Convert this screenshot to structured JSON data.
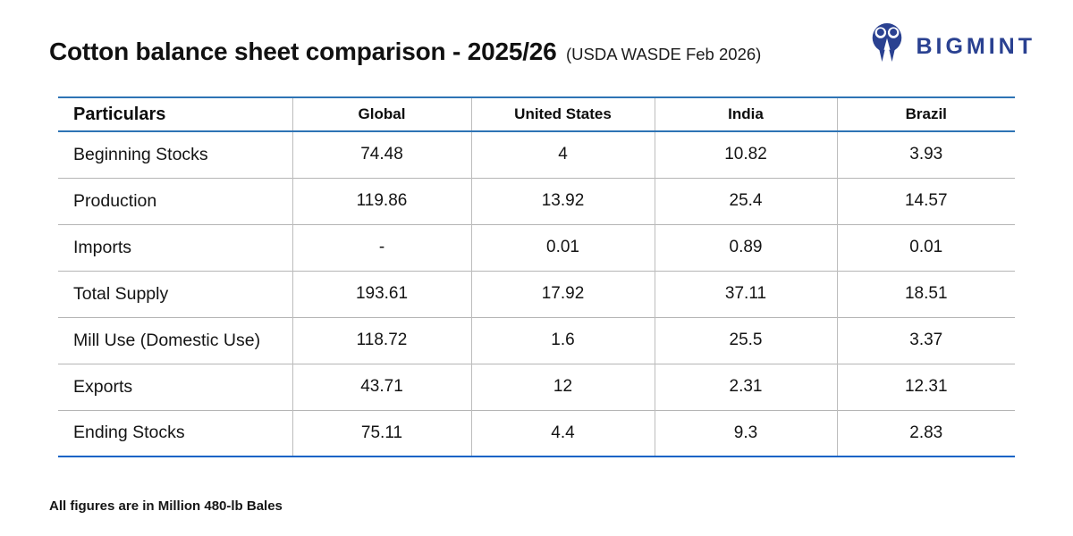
{
  "header": {
    "title": "Cotton balance sheet comparison - 2025/26",
    "subtitle": "(USDA WASDE Feb 2026)",
    "brand_name": "BIGMINT"
  },
  "table": {
    "columns": [
      "Particulars",
      "Global",
      "United States",
      "India",
      "Brazil"
    ],
    "rows": [
      {
        "label": "Beginning Stocks",
        "values": [
          "74.48",
          "4",
          "10.82",
          "3.93"
        ]
      },
      {
        "label": "Production",
        "values": [
          "119.86",
          "13.92",
          "25.4",
          "14.57"
        ]
      },
      {
        "label": "Imports",
        "values": [
          "-",
          "0.01",
          "0.89",
          "0.01"
        ]
      },
      {
        "label": "Total Supply",
        "values": [
          "193.61",
          "17.92",
          "37.11",
          "18.51"
        ]
      },
      {
        "label": "Mill Use (Domestic Use)",
        "values": [
          "118.72",
          "1.6",
          "25.5",
          "3.37"
        ]
      },
      {
        "label": "Exports",
        "values": [
          "43.71",
          "12",
          "2.31",
          "12.31"
        ]
      },
      {
        "label": "Ending Stocks",
        "values": [
          "75.11",
          "4.4",
          "9.3",
          "2.83"
        ]
      }
    ]
  },
  "footer": {
    "note": "All figures are in Million 480-lb Bales"
  },
  "colors": {
    "brand_blue": "#2a4191",
    "header_rule_blue": "#2e74b5",
    "bottom_rule_blue": "#1163c6",
    "grid_gray": "#bdbdbd"
  },
  "chart_data": {
    "type": "table",
    "title": "Cotton balance sheet comparison - 2025/26 (USDA WASDE Feb 2026)",
    "unit_note": "All figures are in Million 480-lb Bales",
    "columns": [
      "Particulars",
      "Global",
      "United States",
      "India",
      "Brazil"
    ],
    "rows": [
      [
        "Beginning Stocks",
        74.48,
        4,
        10.82,
        3.93
      ],
      [
        "Production",
        119.86,
        13.92,
        25.4,
        14.57
      ],
      [
        "Imports",
        null,
        0.01,
        0.89,
        0.01
      ],
      [
        "Total Supply",
        193.61,
        17.92,
        37.11,
        18.51
      ],
      [
        "Mill Use (Domestic Use)",
        118.72,
        1.6,
        25.5,
        3.37
      ],
      [
        "Exports",
        43.71,
        12,
        2.31,
        12.31
      ],
      [
        "Ending Stocks",
        75.11,
        4.4,
        9.3,
        2.83
      ]
    ]
  }
}
